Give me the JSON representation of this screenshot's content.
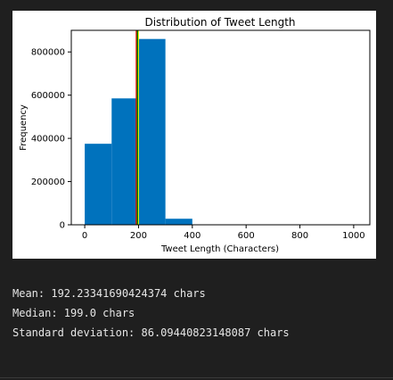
{
  "chart_data": {
    "type": "bar",
    "title": "Distribution of Tweet Length",
    "xlabel": "Tweet Length (Characters)",
    "ylabel": "Frequency",
    "xlim": [
      -50,
      1060
    ],
    "ylim": [
      0,
      900000
    ],
    "xticks": [
      0,
      200,
      400,
      600,
      800,
      1000
    ],
    "yticks": [
      0,
      200000,
      400000,
      600000,
      800000
    ],
    "bins": [
      {
        "x0": 0,
        "x1": 100,
        "value": 375000
      },
      {
        "x0": 100,
        "x1": 200,
        "value": 585000
      },
      {
        "x0": 200,
        "x1": 300,
        "value": 860000
      },
      {
        "x0": 300,
        "x1": 400,
        "value": 28000
      },
      {
        "x0": 400,
        "x1": 500,
        "value": 400
      },
      {
        "x0": 500,
        "x1": 600,
        "value": 100
      },
      {
        "x0": 600,
        "x1": 700,
        "value": 50
      },
      {
        "x0": 700,
        "x1": 800,
        "value": 30
      },
      {
        "x0": 800,
        "x1": 900,
        "value": 20
      },
      {
        "x0": 900,
        "x1": 1000,
        "value": 10
      }
    ],
    "vlines": [
      {
        "x": 192.23341690424374,
        "color": "#ff0000"
      },
      {
        "x": 199.0,
        "color": "#ffff00"
      },
      {
        "x": 196.0,
        "color": "#008000"
      }
    ],
    "bar_color": "#0072bd",
    "grid": false,
    "legend": "none"
  },
  "stats": {
    "mean_line": "Mean: 192.23341690424374 chars",
    "median_line": "Median: 199.0 chars",
    "std_line": "Standard deviation: 86.09440823148087 chars"
  }
}
